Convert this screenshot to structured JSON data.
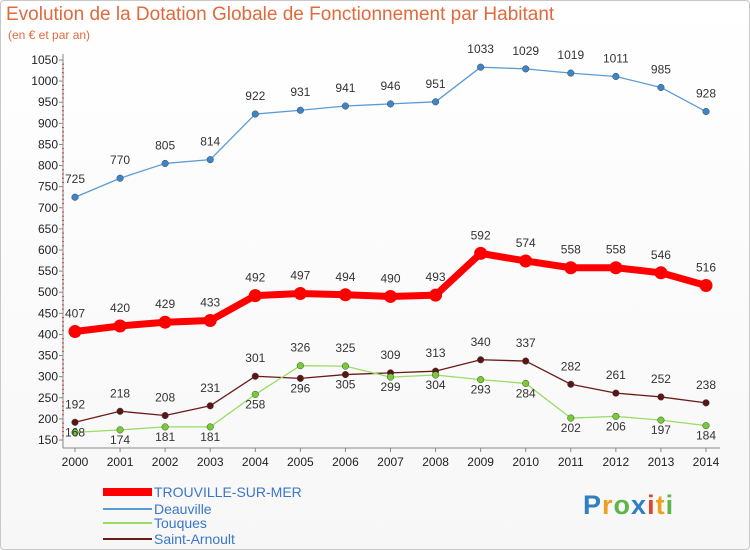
{
  "chart_data": {
    "type": "line",
    "title": "Evolution de la Dotation Globale de Fonctionnement par Habitant",
    "subtitle": "(en € et par an)",
    "xlabel": "",
    "ylabel": "",
    "x": [
      "2000",
      "2001",
      "2002",
      "2003",
      "2004",
      "2005",
      "2006",
      "2007",
      "2008",
      "2009",
      "2010",
      "2011",
      "2012",
      "2013",
      "2014"
    ],
    "ylim": [
      150,
      1050
    ],
    "yticks": [
      150,
      200,
      250,
      300,
      350,
      400,
      450,
      500,
      550,
      600,
      650,
      700,
      750,
      800,
      850,
      900,
      950,
      1000,
      1050
    ],
    "grid": false,
    "legend_position": "bottom-left",
    "series": [
      {
        "name": "TROUVILLE-SUR-MER",
        "color": "#ff0000",
        "marker": "#ff0000",
        "width": 7,
        "values": [
          407,
          420,
          429,
          433,
          492,
          497,
          494,
          490,
          493,
          592,
          574,
          558,
          558,
          546,
          516
        ]
      },
      {
        "name": "Deauville",
        "color": "#5b9bd5",
        "marker": "#3a86c8",
        "width": 1.3,
        "values": [
          725,
          770,
          805,
          814,
          922,
          931,
          941,
          946,
          951,
          1033,
          1029,
          1019,
          1011,
          985,
          928
        ]
      },
      {
        "name": "Touques",
        "color": "#99dd66",
        "marker": "#77cc33",
        "width": 1.3,
        "values": [
          168,
          174,
          181,
          181,
          258,
          326,
          325,
          299,
          304,
          293,
          284,
          202,
          206,
          197,
          184
        ]
      },
      {
        "name": "Saint-Arnoult",
        "color": "#6b1a1a",
        "marker": "#5a1515",
        "width": 1.3,
        "values": [
          192,
          218,
          208,
          231,
          301,
          296,
          305,
          309,
          313,
          340,
          337,
          282,
          261,
          252,
          238
        ]
      }
    ]
  },
  "logo": {
    "text": "Proxiti",
    "letters": [
      "P",
      "r",
      "o",
      "x",
      "i",
      "t",
      "i"
    ],
    "colors": [
      "#2f7fc1",
      "#f0a020",
      "#5fb44a",
      "#2f7fc1",
      "#e2452b",
      "#f0a020",
      "#5fb44a"
    ]
  }
}
